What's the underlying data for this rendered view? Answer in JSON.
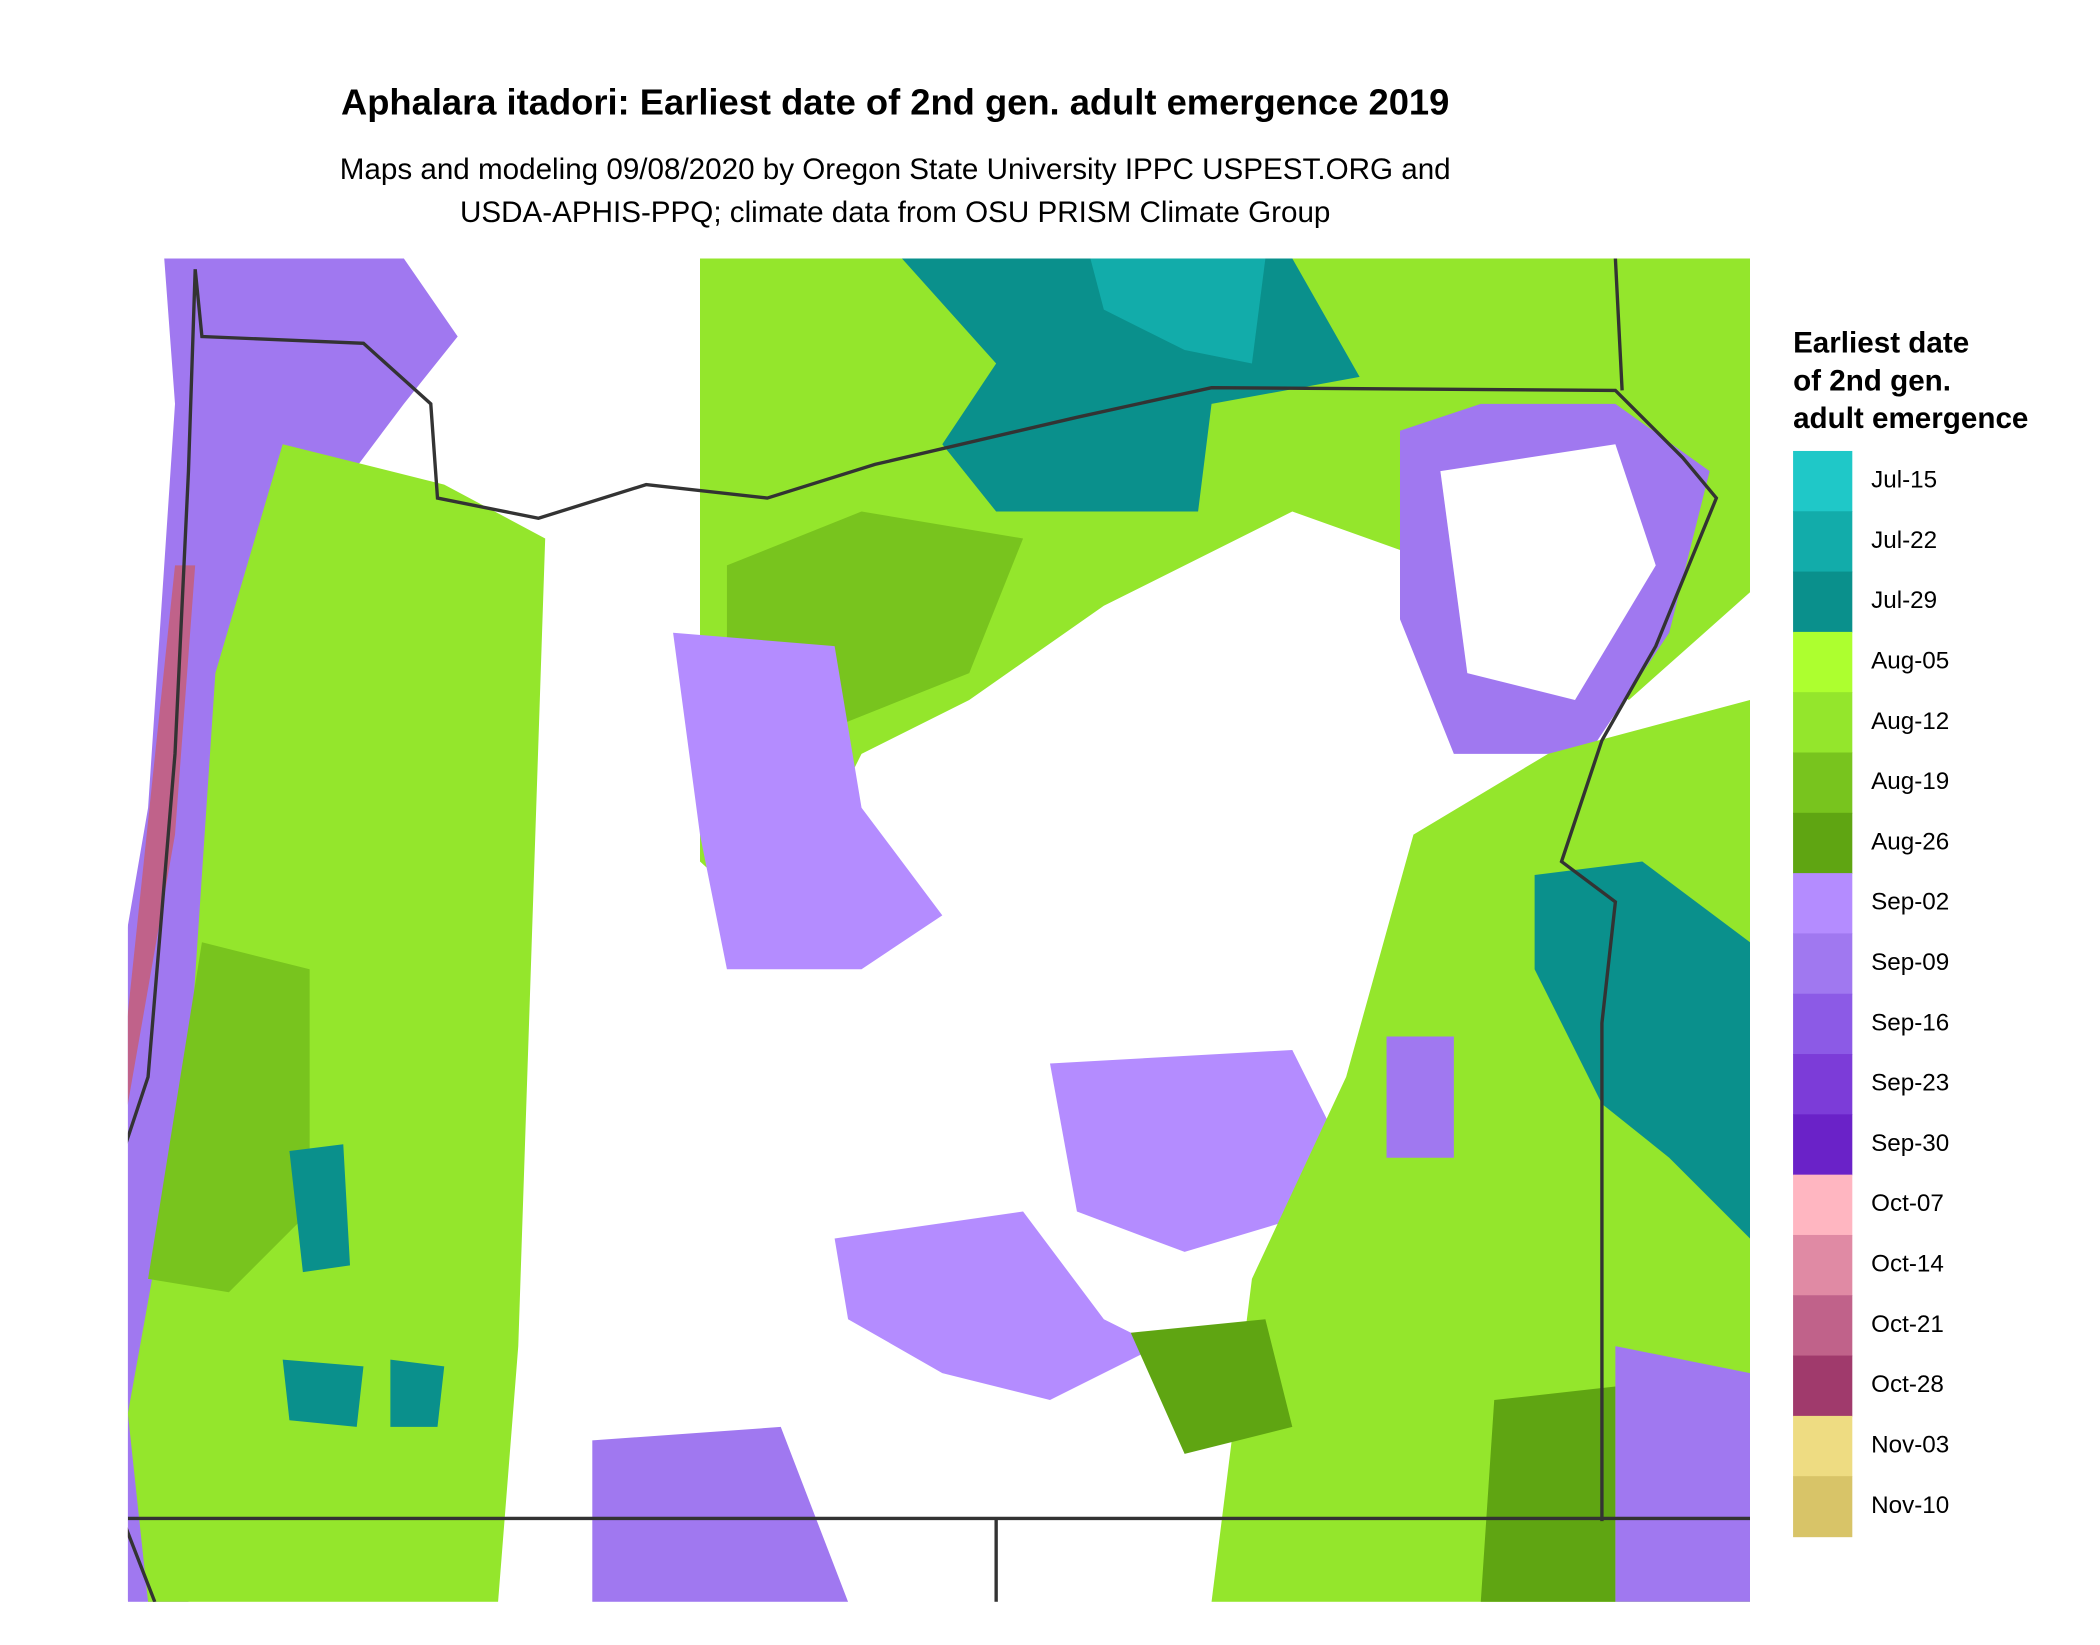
{
  "title": "Aphalara itadori: Earliest date of 2nd gen. adult emergence 2019",
  "subtitle": [
    "Maps and modeling 09/08/2020 by Oregon State University IPPC USPEST.ORG and",
    "USDA-APHIS-PPQ; climate data from OSU PRISM Climate Group"
  ],
  "legend": {
    "title": [
      "Earliest date",
      "of 2nd gen.",
      "adult emergence"
    ],
    "items": [
      {
        "label": "Jul-15",
        "color": "#1fc8c8"
      },
      {
        "label": "Jul-22",
        "color": "#12acaa"
      },
      {
        "label": "Jul-29",
        "color": "#0a908c"
      },
      {
        "label": "Aug-05",
        "color": "#adff2f"
      },
      {
        "label": "Aug-12",
        "color": "#94e62c"
      },
      {
        "label": "Aug-19",
        "color": "#78c41e"
      },
      {
        "label": "Aug-26",
        "color": "#5fa512"
      },
      {
        "label": "Sep-02",
        "color": "#b48cff"
      },
      {
        "label": "Sep-09",
        "color": "#a078f0"
      },
      {
        "label": "Sep-16",
        "color": "#8c5ae6"
      },
      {
        "label": "Sep-23",
        "color": "#7c3cd8"
      },
      {
        "label": "Sep-30",
        "color": "#6a22c8"
      },
      {
        "label": "Oct-07",
        "color": "#ffb6c1"
      },
      {
        "label": "Oct-14",
        "color": "#e08aa4"
      },
      {
        "label": "Oct-21",
        "color": "#c0628a"
      },
      {
        "label": "Oct-28",
        "color": "#a03a6c"
      },
      {
        "label": "Nov-03",
        "color": "#eedc82"
      },
      {
        "label": "Nov-10",
        "color": "#d8c468"
      }
    ]
  }
}
